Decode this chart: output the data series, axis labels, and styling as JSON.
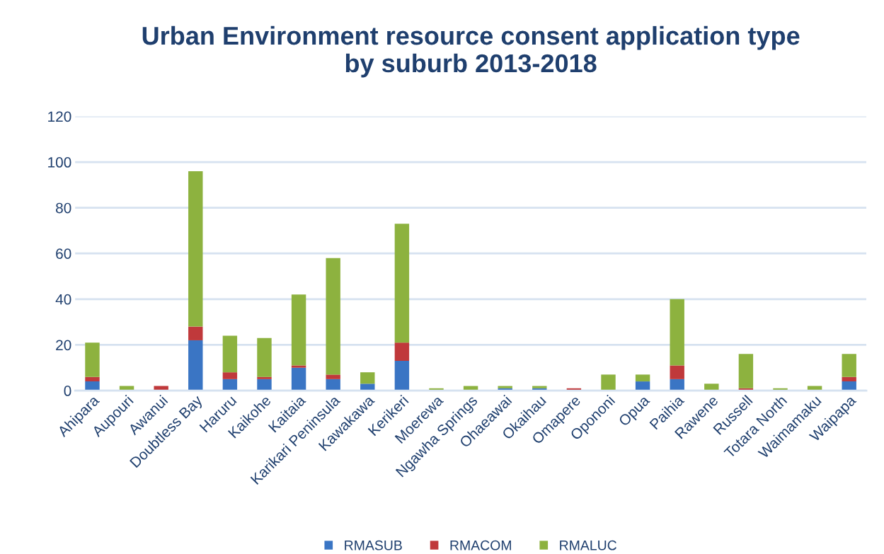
{
  "chart_data": {
    "type": "bar",
    "title": "Urban Environment resource consent application type\nby suburb 2013-2018",
    "stacked": true,
    "categories": [
      "Ahipara",
      "Aupouri",
      "Awanui",
      "Doubtless Bay",
      "Haruru",
      "Kaikohe",
      "Kaitaia",
      "Karikari Peninsula",
      "Kawakawa",
      "Kerikeri",
      "Moerewa",
      "Ngawha Springs",
      "Ohaeawai",
      "Okaihau",
      "Omapere",
      "Opononi",
      "Opua",
      "Paihia",
      "Rawene",
      "Russell",
      "Totara North",
      "Waimamaku",
      "Waipapa"
    ],
    "series": [
      {
        "name": "RMASUB",
        "color": "#3a75c4",
        "values": [
          4,
          0,
          0,
          22,
          5,
          5,
          10,
          5,
          3,
          13,
          0,
          0,
          1,
          1,
          0,
          0,
          4,
          5,
          0,
          0,
          0,
          0,
          4
        ]
      },
      {
        "name": "RMACOM",
        "color": "#c0393b",
        "values": [
          2,
          0,
          2,
          6,
          3,
          1,
          1,
          2,
          0,
          8,
          0,
          0,
          0,
          0,
          1,
          0,
          0,
          6,
          0,
          1,
          0,
          0,
          2
        ]
      },
      {
        "name": "RMALUC",
        "color": "#8db23f",
        "values": [
          15,
          2,
          0,
          68,
          16,
          17,
          31,
          51,
          5,
          52,
          1,
          2,
          1,
          1,
          0,
          7,
          3,
          29,
          3,
          15,
          1,
          2,
          10
        ]
      }
    ],
    "ylim": [
      0,
      120
    ],
    "yticks": [
      0,
      20,
      40,
      60,
      80,
      100,
      120
    ],
    "grid": "y",
    "legend": "bottom"
  }
}
